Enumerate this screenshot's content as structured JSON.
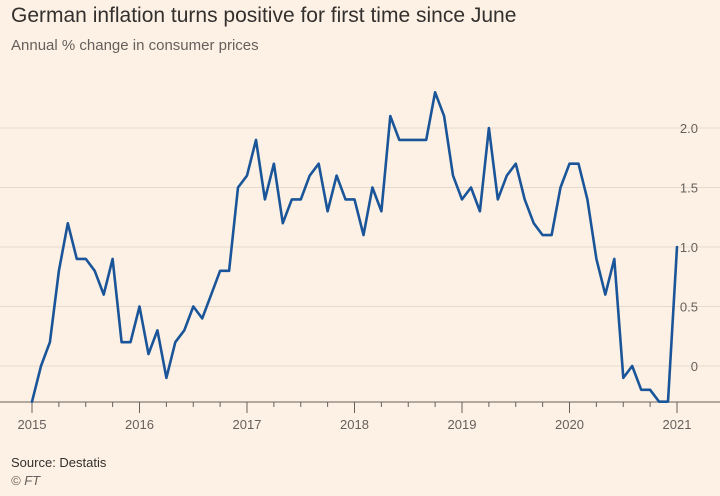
{
  "header": {
    "title": "German inflation turns positive for first time since June",
    "subtitle": "Annual % change in consumer prices"
  },
  "footer": {
    "source": "Source: Destatis",
    "credit": "© FT"
  },
  "chart_data": {
    "type": "line",
    "title": "German inflation turns positive for first time since June",
    "subtitle": "Annual % change in consumer prices",
    "xlabel": "",
    "ylabel": "",
    "x_start": "2015-01",
    "x_frequency": "monthly",
    "xlim": [
      "2015-01",
      "2021-01"
    ],
    "ylim": [
      -0.3,
      2.4
    ],
    "y_ticks": [
      0,
      0.5,
      1.0,
      1.5,
      2.0
    ],
    "y_tick_labels": [
      "0",
      "0.5",
      "1.0",
      "1.5",
      "2.0"
    ],
    "y_axis_position": "right",
    "x_ticks": [
      "2015",
      "2016",
      "2017",
      "2018",
      "2019",
      "2020",
      "2021"
    ],
    "grid": "horizontal",
    "colors": {
      "line": "#1a5599",
      "grid": "#e6d9ce",
      "axis": "#66605c",
      "background": "#fdf1e5"
    },
    "series": [
      {
        "values": [
          -0.3,
          0.0,
          0.2,
          0.8,
          1.2,
          0.9,
          0.9,
          0.8,
          0.6,
          0.9,
          0.2,
          0.2,
          0.5,
          0.1,
          0.3,
          -0.1,
          0.2,
          0.3,
          0.5,
          0.4,
          0.6,
          0.8,
          0.8,
          1.5,
          1.6,
          1.9,
          1.4,
          1.7,
          1.2,
          1.4,
          1.4,
          1.6,
          1.7,
          1.3,
          1.6,
          1.4,
          1.4,
          1.1,
          1.5,
          1.3,
          2.1,
          1.9,
          1.9,
          1.9,
          1.9,
          2.3,
          2.1,
          1.6,
          1.4,
          1.5,
          1.3,
          2.0,
          1.4,
          1.6,
          1.7,
          1.4,
          1.2,
          1.1,
          1.1,
          1.5,
          1.7,
          1.7,
          1.4,
          0.9,
          0.6,
          0.9,
          -0.1,
          0.0,
          -0.2,
          -0.2,
          -0.3,
          -0.3,
          1.0
        ]
      }
    ]
  }
}
